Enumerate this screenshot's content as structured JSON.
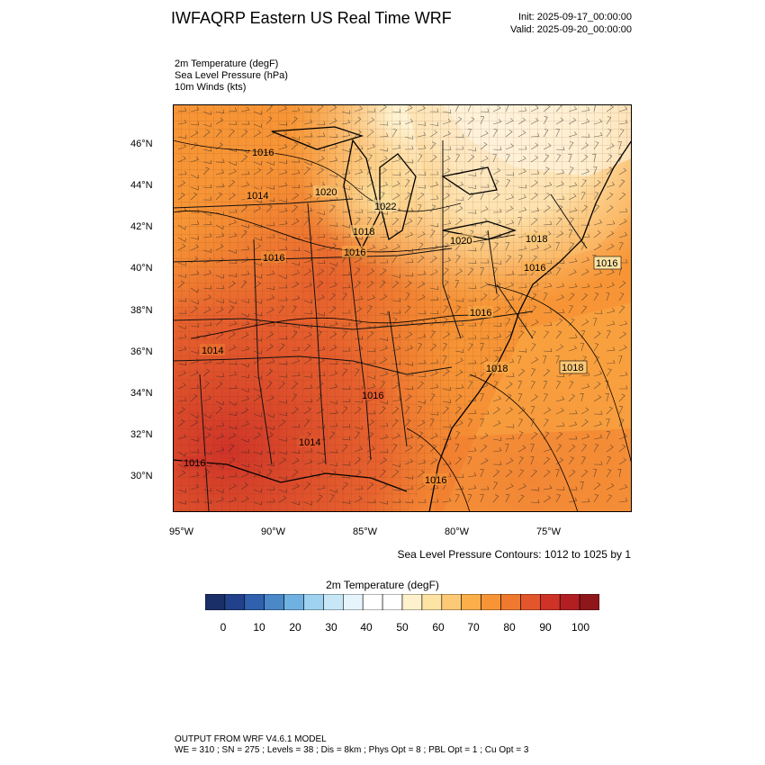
{
  "header": {
    "title": "IWFAQRP Eastern US Real Time WRF",
    "init": "Init: 2025-09-17_00:00:00",
    "valid": "Valid: 2025-09-20_00:00:00"
  },
  "variables": [
    "2m Temperature   (degF)",
    "Sea Level Pressure   (hPa)",
    "10m Winds   (kts)"
  ],
  "map": {
    "lat_ticks": [
      "46°N",
      "44°N",
      "42°N",
      "40°N",
      "38°N",
      "36°N",
      "34°N",
      "32°N",
      "30°N"
    ],
    "lon_ticks": [
      "95°W",
      "90°W",
      "85°W",
      "80°W",
      "75°W"
    ],
    "pressure_labels": [
      "1016",
      "1014",
      "1020",
      "1022",
      "1018",
      "1016",
      "1020",
      "1018",
      "1016",
      "1016",
      "1016",
      "1014",
      "1016",
      "1018",
      "1018",
      "1016",
      "1014",
      "1016",
      "1016",
      "1016"
    ]
  },
  "contour_note": "Sea Level Pressure Contours: 1012 to 1025 by 1",
  "colorbar": {
    "title": "2m Temperature  (degF)",
    "labels": [
      "0",
      "10",
      "20",
      "30",
      "40",
      "50",
      "60",
      "70",
      "80",
      "90",
      "100"
    ],
    "colors": [
      "#1a2f68",
      "#21418a",
      "#2f61ad",
      "#4a88c8",
      "#6fb1e1",
      "#9fd2f0",
      "#c7e7f7",
      "#e6f4fb",
      "#ffffff",
      "#ffffff",
      "#fff1cc",
      "#fde3a4",
      "#fcc977",
      "#fbae4a",
      "#f79536",
      "#ef7a2f",
      "#e3562c",
      "#cf3328",
      "#b21f23",
      "#8f171b"
    ]
  },
  "footer": {
    "line1": "OUTPUT FROM WRF V4.6.1 MODEL",
    "line2": "WE = 310 ; SN = 275 ; Levels = 38 ; Dis = 8km ; Phys Opt = 8 ; PBL Opt = 1 ; Cu Opt = 3"
  }
}
